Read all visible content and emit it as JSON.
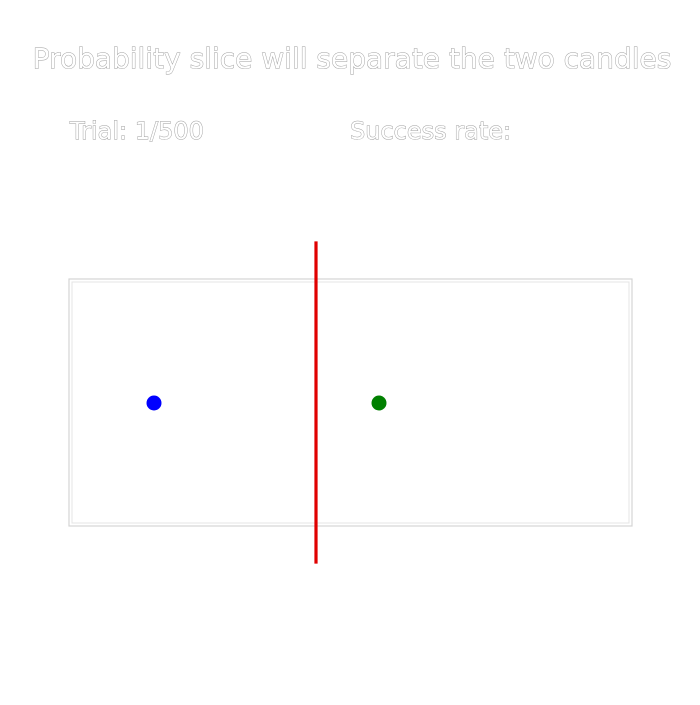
{
  "title": "Probability slice will separate the two candles",
  "trial": {
    "text": "Trial: 1/500"
  },
  "success": {
    "text": "Success rate:"
  },
  "candles": [
    {
      "id": "left",
      "color": "#0000ff"
    },
    {
      "id": "right",
      "color": "#008000"
    }
  ],
  "slice": {
    "color": "#e00000"
  },
  "colors": {
    "background": "#ffffff",
    "frame": "#d4d4d4",
    "text_outline": "#9a9a9a"
  }
}
